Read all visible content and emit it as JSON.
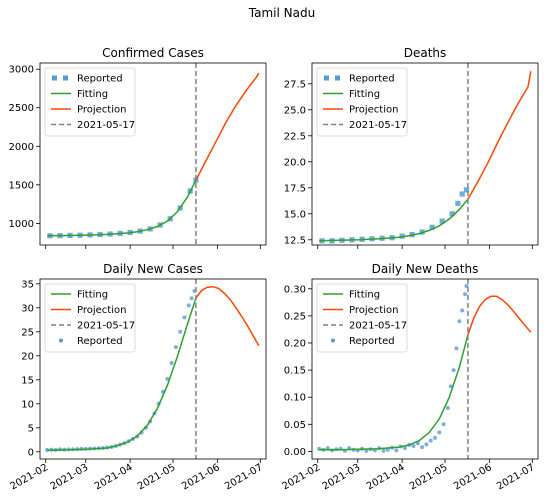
{
  "figure_title": "Tamil Nadu",
  "colors": {
    "reported": "#5b9bd5",
    "fitting": "#2ca02c",
    "projection": "#ff4500",
    "vline": "#808080",
    "axis": "#000000"
  },
  "x_tick_labels": [
    "2021-02",
    "2021-03",
    "2021-04",
    "2021-05",
    "2021-06",
    "2021-07"
  ],
  "chart_data": [
    {
      "type": "line",
      "title": "Confirmed Cases",
      "ylim": [
        720,
        3080
      ],
      "yticks": [
        1000,
        1500,
        2000,
        2500,
        3000
      ],
      "ytick_labels": [
        "1000",
        "1500",
        "2000",
        "2500",
        "3000"
      ],
      "legend": {
        "placement": "top-left",
        "entries": [
          "Reported",
          "Fitting",
          "Projection",
          "2021-05-17"
        ]
      },
      "vline": "2021-05-17",
      "reported_style": "squares",
      "reported": {
        "x": [
          "2021-02-04",
          "2021-02-11",
          "2021-02-18",
          "2021-02-25",
          "2021-03-04",
          "2021-03-11",
          "2021-03-18",
          "2021-03-25",
          "2021-04-01",
          "2021-04-08",
          "2021-04-15",
          "2021-04-22",
          "2021-04-29",
          "2021-05-06",
          "2021-05-13",
          "2021-05-17"
        ],
        "y": [
          840,
          842,
          844,
          847,
          851,
          856,
          862,
          870,
          882,
          900,
          928,
          980,
          1060,
          1200,
          1420,
          1560
        ]
      },
      "fitting": {
        "x": [
          "2021-02-02",
          "2021-02-16",
          "2021-03-02",
          "2021-03-16",
          "2021-03-30",
          "2021-04-06",
          "2021-04-13",
          "2021-04-20",
          "2021-04-27",
          "2021-05-04",
          "2021-05-11",
          "2021-05-17"
        ],
        "y": [
          840,
          843,
          849,
          858,
          875,
          892,
          918,
          960,
          1030,
          1150,
          1340,
          1560
        ]
      },
      "projection": {
        "x": [
          "2021-05-17",
          "2021-05-24",
          "2021-05-31",
          "2021-06-07",
          "2021-06-14",
          "2021-06-21",
          "2021-06-28",
          "2021-06-30"
        ],
        "y": [
          1560,
          1810,
          2060,
          2310,
          2530,
          2720,
          2890,
          2950
        ]
      }
    },
    {
      "type": "line",
      "title": "Deaths",
      "ylim": [
        12.0,
        29.5
      ],
      "yticks": [
        12.5,
        15.0,
        17.5,
        20.0,
        22.5,
        25.0,
        27.5
      ],
      "ytick_labels": [
        "12.5",
        "15.0",
        "17.5",
        "20.0",
        "22.5",
        "25.0",
        "27.5"
      ],
      "legend": {
        "placement": "top-left",
        "entries": [
          "Reported",
          "Fitting",
          "Projection",
          "2021-05-17"
        ]
      },
      "vline": "2021-05-17",
      "reported_style": "squares",
      "reported": {
        "x": [
          "2021-02-04",
          "2021-02-11",
          "2021-02-18",
          "2021-02-25",
          "2021-03-04",
          "2021-03-11",
          "2021-03-18",
          "2021-03-25",
          "2021-04-01",
          "2021-04-08",
          "2021-04-15",
          "2021-04-22",
          "2021-04-29",
          "2021-05-06",
          "2021-05-10",
          "2021-05-13",
          "2021-05-16"
        ],
        "y": [
          12.4,
          12.4,
          12.45,
          12.5,
          12.55,
          12.6,
          12.65,
          12.7,
          12.85,
          13.0,
          13.25,
          13.7,
          14.3,
          15.0,
          16.0,
          16.9,
          17.3
        ]
      },
      "fitting": {
        "x": [
          "2021-02-02",
          "2021-02-16",
          "2021-03-02",
          "2021-03-16",
          "2021-03-30",
          "2021-04-06",
          "2021-04-13",
          "2021-04-20",
          "2021-04-27",
          "2021-05-04",
          "2021-05-11",
          "2021-05-17"
        ],
        "y": [
          12.4,
          12.45,
          12.5,
          12.6,
          12.75,
          12.9,
          13.1,
          13.4,
          13.85,
          14.5,
          15.4,
          16.4
        ]
      },
      "projection": {
        "x": [
          "2021-05-17",
          "2021-05-24",
          "2021-05-31",
          "2021-06-07",
          "2021-06-14",
          "2021-06-21",
          "2021-06-28",
          "2021-06-30"
        ],
        "y": [
          16.4,
          18.1,
          19.9,
          21.9,
          23.8,
          25.6,
          27.2,
          28.7
        ]
      }
    },
    {
      "type": "line",
      "title": "Daily New Cases",
      "ylim": [
        -1.5,
        36
      ],
      "yticks": [
        0,
        5,
        10,
        15,
        20,
        25,
        30,
        35
      ],
      "ytick_labels": [
        "0",
        "5",
        "10",
        "15",
        "20",
        "25",
        "30",
        "35"
      ],
      "legend": {
        "placement": "top-left",
        "entries": [
          "Fitting",
          "Projection",
          "2021-05-17",
          "Reported"
        ]
      },
      "vline": "2021-05-17",
      "reported_style": "dots",
      "reported": {
        "x": [
          "2021-02-02",
          "2021-02-05",
          "2021-02-08",
          "2021-02-11",
          "2021-02-14",
          "2021-02-17",
          "2021-02-20",
          "2021-02-23",
          "2021-02-26",
          "2021-03-01",
          "2021-03-04",
          "2021-03-07",
          "2021-03-10",
          "2021-03-13",
          "2021-03-16",
          "2021-03-19",
          "2021-03-22",
          "2021-03-25",
          "2021-03-28",
          "2021-03-31",
          "2021-04-03",
          "2021-04-06",
          "2021-04-09",
          "2021-04-12",
          "2021-04-15",
          "2021-04-18",
          "2021-04-21",
          "2021-04-24",
          "2021-04-27",
          "2021-04-30",
          "2021-05-03",
          "2021-05-06",
          "2021-05-09",
          "2021-05-12",
          "2021-05-14",
          "2021-05-16"
        ],
        "y": [
          0.4,
          0.45,
          0.4,
          0.5,
          0.45,
          0.5,
          0.5,
          0.55,
          0.6,
          0.6,
          0.65,
          0.7,
          0.75,
          0.8,
          0.9,
          1.0,
          1.2,
          1.5,
          1.8,
          2.2,
          2.7,
          3.2,
          4.0,
          5.0,
          6.3,
          8.0,
          10.0,
          12.5,
          15.2,
          18.5,
          21.8,
          25.0,
          28.0,
          30.5,
          32.0,
          33.5
        ]
      },
      "fitting": {
        "x": [
          "2021-02-02",
          "2021-02-16",
          "2021-03-02",
          "2021-03-16",
          "2021-03-23",
          "2021-03-30",
          "2021-04-06",
          "2021-04-13",
          "2021-04-20",
          "2021-04-27",
          "2021-05-04",
          "2021-05-11",
          "2021-05-17"
        ],
        "y": [
          0.3,
          0.4,
          0.55,
          0.8,
          1.3,
          2.0,
          3.3,
          5.5,
          9.0,
          13.8,
          19.8,
          26.5,
          32.0
        ]
      },
      "projection": {
        "x": [
          "2021-05-17",
          "2021-05-21",
          "2021-05-25",
          "2021-05-29",
          "2021-06-02",
          "2021-06-06",
          "2021-06-10",
          "2021-06-14",
          "2021-06-18",
          "2021-06-22",
          "2021-06-26",
          "2021-06-30"
        ],
        "y": [
          32.0,
          33.6,
          34.3,
          34.4,
          34.0,
          33.0,
          31.7,
          30.0,
          28.2,
          26.3,
          24.2,
          22.1
        ]
      }
    },
    {
      "type": "line",
      "title": "Daily New Deaths",
      "ylim": [
        -0.014,
        0.318
      ],
      "yticks": [
        0.0,
        0.05,
        0.1,
        0.15,
        0.2,
        0.25,
        0.3
      ],
      "ytick_labels": [
        "0.00",
        "0.05",
        "0.10",
        "0.15",
        "0.20",
        "0.25",
        "0.30"
      ],
      "legend": {
        "placement": "top-left",
        "entries": [
          "Fitting",
          "Projection",
          "2021-05-17",
          "Reported"
        ]
      },
      "vline": "2021-05-17",
      "reported_style": "dots",
      "reported": {
        "x": [
          "2021-02-02",
          "2021-02-05",
          "2021-02-08",
          "2021-02-11",
          "2021-02-14",
          "2021-02-17",
          "2021-02-20",
          "2021-02-23",
          "2021-02-26",
          "2021-03-01",
          "2021-03-04",
          "2021-03-07",
          "2021-03-10",
          "2021-03-13",
          "2021-03-16",
          "2021-03-19",
          "2021-03-22",
          "2021-03-25",
          "2021-03-28",
          "2021-03-31",
          "2021-04-03",
          "2021-04-06",
          "2021-04-09",
          "2021-04-12",
          "2021-04-15",
          "2021-04-18",
          "2021-04-21",
          "2021-04-24",
          "2021-04-27",
          "2021-04-30",
          "2021-05-03",
          "2021-05-05",
          "2021-05-07",
          "2021-05-09",
          "2021-05-11",
          "2021-05-13",
          "2021-05-15",
          "2021-05-16"
        ],
        "y": [
          0.005,
          0.003,
          0.006,
          0.002,
          0.004,
          0.005,
          0.001,
          0.006,
          0.003,
          0.002,
          0.005,
          0.001,
          0.004,
          0.002,
          0.006,
          0.001,
          0.003,
          0.007,
          0.002,
          0.009,
          0.006,
          0.012,
          0.01,
          0.015,
          0.008,
          0.013,
          0.02,
          0.025,
          0.035,
          0.05,
          0.08,
          0.12,
          0.15,
          0.19,
          0.24,
          0.26,
          0.29,
          0.305
        ]
      },
      "fitting": {
        "x": [
          "2021-02-02",
          "2021-02-16",
          "2021-03-02",
          "2021-03-16",
          "2021-03-30",
          "2021-04-06",
          "2021-04-13",
          "2021-04-20",
          "2021-04-27",
          "2021-05-04",
          "2021-05-11",
          "2021-05-17"
        ],
        "y": [
          0.003,
          0.003,
          0.004,
          0.005,
          0.008,
          0.012,
          0.02,
          0.035,
          0.06,
          0.1,
          0.155,
          0.215
        ]
      },
      "projection": {
        "x": [
          "2021-05-17",
          "2021-05-21",
          "2021-05-25",
          "2021-05-29",
          "2021-06-02",
          "2021-06-06",
          "2021-06-10",
          "2021-06-14",
          "2021-06-18",
          "2021-06-22",
          "2021-06-26",
          "2021-06-30"
        ],
        "y": [
          0.215,
          0.245,
          0.267,
          0.28,
          0.286,
          0.286,
          0.28,
          0.27,
          0.258,
          0.245,
          0.232,
          0.22
        ]
      }
    }
  ]
}
